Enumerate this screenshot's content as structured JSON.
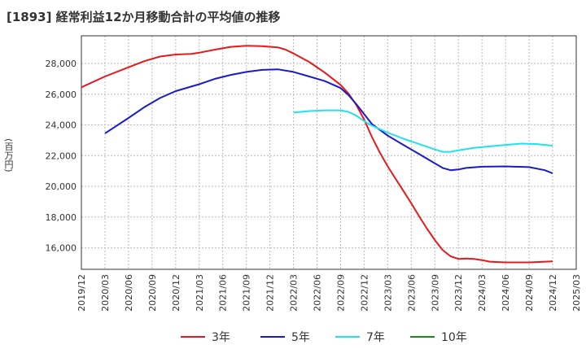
{
  "chart_data": {
    "type": "line",
    "title": "[1893]  経常利益12か月移動合計の平均値の推移",
    "ylabel": "(百万円)",
    "xlabel": "",
    "ylim": [
      14600,
      29800
    ],
    "yticks": [
      16000,
      18000,
      20000,
      22000,
      24000,
      26000,
      28000
    ],
    "ytick_labels": [
      "16,000",
      "18,000",
      "20,000",
      "22,000",
      "24,000",
      "26,000",
      "28,000"
    ],
    "xticks": [
      "2019/12",
      "2020/03",
      "2020/06",
      "2020/09",
      "2020/12",
      "2021/03",
      "2021/06",
      "2021/09",
      "2021/12",
      "2022/03",
      "2022/06",
      "2022/09",
      "2022/12",
      "2023/03",
      "2023/06",
      "2023/09",
      "2023/12",
      "2024/03",
      "2024/06",
      "2024/09",
      "2024/12",
      "2025/03"
    ],
    "grid": true,
    "legend_position": "bottom",
    "series": [
      {
        "name": "3年",
        "color": "#e41a1c",
        "points": [
          [
            "2019/12",
            26450
          ],
          [
            "2020/03",
            27150
          ],
          [
            "2020/06",
            27750
          ],
          [
            "2020/08",
            28150
          ],
          [
            "2020/10",
            28450
          ],
          [
            "2020/12",
            28580
          ],
          [
            "2021/02",
            28620
          ],
          [
            "2021/03",
            28700
          ],
          [
            "2021/05",
            28900
          ],
          [
            "2021/07",
            29080
          ],
          [
            "2021/09",
            29150
          ],
          [
            "2021/11",
            29130
          ],
          [
            "2022/01",
            29050
          ],
          [
            "2022/02",
            28900
          ],
          [
            "2022/03",
            28650
          ],
          [
            "2022/05",
            28100
          ],
          [
            "2022/07",
            27400
          ],
          [
            "2022/09",
            26600
          ],
          [
            "2022/10",
            26050
          ],
          [
            "2022/11",
            25300
          ],
          [
            "2022/12",
            24350
          ],
          [
            "2023/01",
            23200
          ],
          [
            "2023/02",
            22200
          ],
          [
            "2023/03",
            21300
          ],
          [
            "2023/04",
            20500
          ],
          [
            "2023/05",
            19700
          ],
          [
            "2023/06",
            18900
          ],
          [
            "2023/07",
            18050
          ],
          [
            "2023/08",
            17250
          ],
          [
            "2023/09",
            16500
          ],
          [
            "2023/10",
            15850
          ],
          [
            "2023/11",
            15450
          ],
          [
            "2023/12",
            15280
          ],
          [
            "2024/01",
            15300
          ],
          [
            "2024/02",
            15280
          ],
          [
            "2024/03",
            15200
          ],
          [
            "2024/04",
            15100
          ],
          [
            "2024/06",
            15050
          ],
          [
            "2024/09",
            15050
          ],
          [
            "2024/12",
            15120
          ]
        ]
      },
      {
        "name": "5年",
        "color": "#1a1aca",
        "points": [
          [
            "2020/03",
            23450
          ],
          [
            "2020/06",
            24450
          ],
          [
            "2020/08",
            25150
          ],
          [
            "2020/10",
            25750
          ],
          [
            "2020/12",
            26200
          ],
          [
            "2021/03",
            26650
          ],
          [
            "2021/05",
            27000
          ],
          [
            "2021/07",
            27250
          ],
          [
            "2021/09",
            27450
          ],
          [
            "2021/11",
            27580
          ],
          [
            "2022/01",
            27620
          ],
          [
            "2022/03",
            27450
          ],
          [
            "2022/05",
            27150
          ],
          [
            "2022/07",
            26850
          ],
          [
            "2022/09",
            26400
          ],
          [
            "2022/10",
            25950
          ],
          [
            "2022/11",
            25350
          ],
          [
            "2022/12",
            24700
          ],
          [
            "2023/01",
            24050
          ],
          [
            "2023/03",
            23300
          ],
          [
            "2023/05",
            22700
          ],
          [
            "2023/07",
            22100
          ],
          [
            "2023/09",
            21500
          ],
          [
            "2023/10",
            21200
          ],
          [
            "2023/11",
            21050
          ],
          [
            "2023/12",
            21100
          ],
          [
            "2024/01",
            21200
          ],
          [
            "2024/03",
            21280
          ],
          [
            "2024/06",
            21300
          ],
          [
            "2024/09",
            21250
          ],
          [
            "2024/11",
            21050
          ],
          [
            "2024/12",
            20850
          ]
        ]
      },
      {
        "name": "7年",
        "color": "#22e0ee",
        "points": [
          [
            "2022/03",
            24800
          ],
          [
            "2022/05",
            24900
          ],
          [
            "2022/07",
            24950
          ],
          [
            "2022/09",
            24950
          ],
          [
            "2022/10",
            24850
          ],
          [
            "2022/11",
            24600
          ],
          [
            "2022/12",
            24250
          ],
          [
            "2023/01",
            23950
          ],
          [
            "2023/03",
            23500
          ],
          [
            "2023/05",
            23100
          ],
          [
            "2023/07",
            22750
          ],
          [
            "2023/09",
            22400
          ],
          [
            "2023/10",
            22250
          ],
          [
            "2023/11",
            22250
          ],
          [
            "2023/12",
            22350
          ],
          [
            "2024/02",
            22500
          ],
          [
            "2024/04",
            22600
          ],
          [
            "2024/06",
            22700
          ],
          [
            "2024/08",
            22780
          ],
          [
            "2024/10",
            22750
          ],
          [
            "2024/12",
            22650
          ]
        ]
      },
      {
        "name": "10年",
        "color": "#1a8a1a",
        "points": []
      }
    ]
  }
}
